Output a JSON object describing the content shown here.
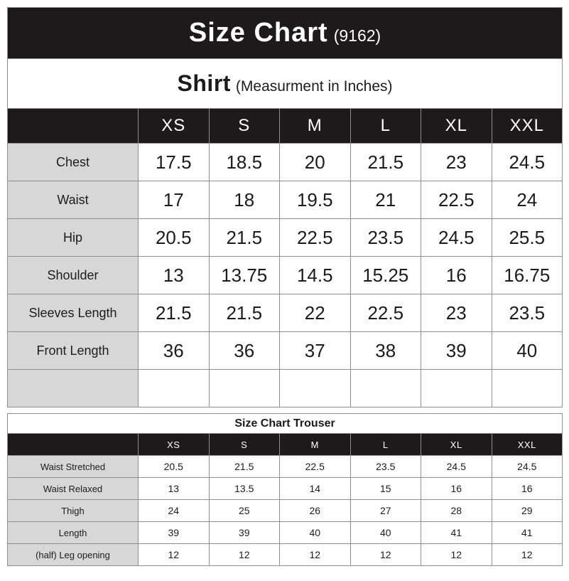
{
  "title_bar": {
    "title": "Size Chart",
    "code": "(9162)"
  },
  "shirt_table": {
    "title": "Shirt",
    "subtitle": "(Measurment in Inches)",
    "columns": [
      "XS",
      "S",
      "M",
      "L",
      "XL",
      "XXL"
    ],
    "rows": [
      {
        "label": "Chest",
        "values": [
          "17.5",
          "18.5",
          "20",
          "21.5",
          "23",
          "24.5"
        ]
      },
      {
        "label": "Waist",
        "values": [
          "17",
          "18",
          "19.5",
          "21",
          "22.5",
          "24"
        ]
      },
      {
        "label": "Hip",
        "values": [
          "20.5",
          "21.5",
          "22.5",
          "23.5",
          "24.5",
          "25.5"
        ]
      },
      {
        "label": "Shoulder",
        "values": [
          "13",
          "13.75",
          "14.5",
          "15.25",
          "16",
          "16.75"
        ]
      },
      {
        "label": "Sleeves Length",
        "values": [
          "21.5",
          "21.5",
          "22",
          "22.5",
          "23",
          "23.5"
        ]
      },
      {
        "label": "Front Length",
        "values": [
          "36",
          "36",
          "37",
          "38",
          "39",
          "40"
        ]
      },
      {
        "label": "",
        "values": [
          "",
          "",
          "",
          "",
          "",
          ""
        ]
      }
    ]
  },
  "trouser_table": {
    "title": "Size Chart Trouser",
    "columns": [
      "XS",
      "S",
      "M",
      "L",
      "XL",
      "XXL"
    ],
    "rows": [
      {
        "label": "Waist Stretched",
        "values": [
          "20.5",
          "21.5",
          "22.5",
          "23.5",
          "24.5",
          "24.5"
        ]
      },
      {
        "label": "Waist Relaxed",
        "values": [
          "13",
          "13.5",
          "14",
          "15",
          "16",
          "16"
        ]
      },
      {
        "label": "Thigh",
        "values": [
          "24",
          "25",
          "26",
          "27",
          "28",
          "29"
        ]
      },
      {
        "label": "Length",
        "values": [
          "39",
          "39",
          "40",
          "40",
          "41",
          "41"
        ]
      },
      {
        "label": "(half) Leg opening",
        "values": [
          "12",
          "12",
          "12",
          "12",
          "12",
          "12"
        ]
      }
    ]
  },
  "colors": {
    "band_black": "#1e1a1b",
    "label_gray": "#d7d7d7",
    "border_gray": "#8f8f8f"
  }
}
